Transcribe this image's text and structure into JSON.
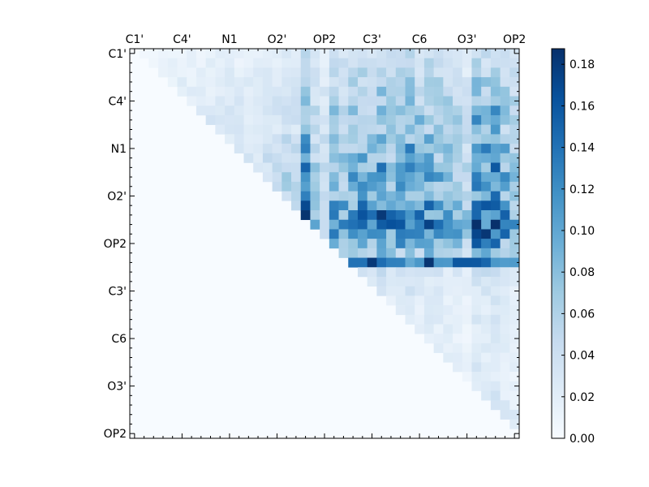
{
  "chart_data": {
    "type": "heatmap",
    "title": "",
    "xlabel": "",
    "ylabel": "",
    "labels": [
      "C1'",
      "C4'",
      "N1",
      "O2'",
      "OP2",
      "C3'",
      "C6",
      "O3'",
      "OP2"
    ],
    "n_cells": 41,
    "label_every": 5,
    "ticks_every": 1,
    "colormap": "Blues",
    "colorbar": {
      "range": [
        0.0,
        0.1875
      ],
      "ticks": [
        0.0,
        0.02,
        0.04,
        0.06,
        0.08,
        0.1,
        0.12,
        0.14,
        0.16,
        0.18
      ],
      "tick_labels": [
        "0.00",
        "0.02",
        "0.04",
        "0.06",
        "0.08",
        "0.10",
        "0.12",
        "0.14",
        "0.16",
        "0.18"
      ]
    },
    "triangle": "upper",
    "row_profile": [
      0.035,
      0.04,
      0.045,
      0.05,
      0.055,
      0.06,
      0.065,
      0.07,
      0.06,
      0.07,
      0.08,
      0.075,
      0.085,
      0.09,
      0.085,
      0.08,
      0.1,
      0.11,
      0.12,
      0.11,
      0.085,
      0.065,
      0.13,
      0.03,
      0.025,
      0.025,
      0.02,
      0.02,
      0.02,
      0.02,
      0.018,
      0.02,
      0.02,
      0.02,
      0.018,
      0.02,
      0.02,
      0.025,
      0.03,
      0.02,
      0.01
    ],
    "col_profile": [
      0.0,
      0.2,
      0.3,
      0.35,
      0.35,
      0.4,
      0.35,
      0.35,
      0.4,
      0.45,
      0.45,
      0.4,
      0.4,
      0.45,
      0.5,
      0.55,
      0.6,
      0.5,
      1.3,
      0.7,
      0.55,
      1.0,
      0.9,
      1.0,
      1.1,
      1.0,
      1.2,
      1.0,
      1.1,
      1.2,
      1.0,
      1.1,
      1.0,
      0.9,
      0.8,
      0.6,
      1.3,
      1.2,
      1.4,
      1.0,
      0.8
    ],
    "highlights": [
      {
        "row": 16,
        "col": 18,
        "value": 0.17
      },
      {
        "row": 17,
        "col": 18,
        "value": 0.185
      },
      {
        "row": 18,
        "col": 18,
        "value": 0.16
      },
      {
        "row": 15,
        "col": 18,
        "value": 0.13
      },
      {
        "row": 12,
        "col": 18,
        "value": 0.15
      },
      {
        "row": 10,
        "col": 18,
        "value": 0.13
      },
      {
        "row": 20,
        "col": 36,
        "value": 0.16
      },
      {
        "row": 20,
        "col": 38,
        "value": 0.15
      },
      {
        "row": 22,
        "col": 23,
        "value": 0.14
      },
      {
        "row": 22,
        "col": 24,
        "value": 0.14
      },
      {
        "row": 22,
        "col": 34,
        "value": 0.16
      },
      {
        "row": 22,
        "col": 35,
        "value": 0.16
      },
      {
        "row": 22,
        "col": 27,
        "value": 0.13
      },
      {
        "row": 22,
        "col": 40,
        "value": 0.11
      }
    ]
  }
}
